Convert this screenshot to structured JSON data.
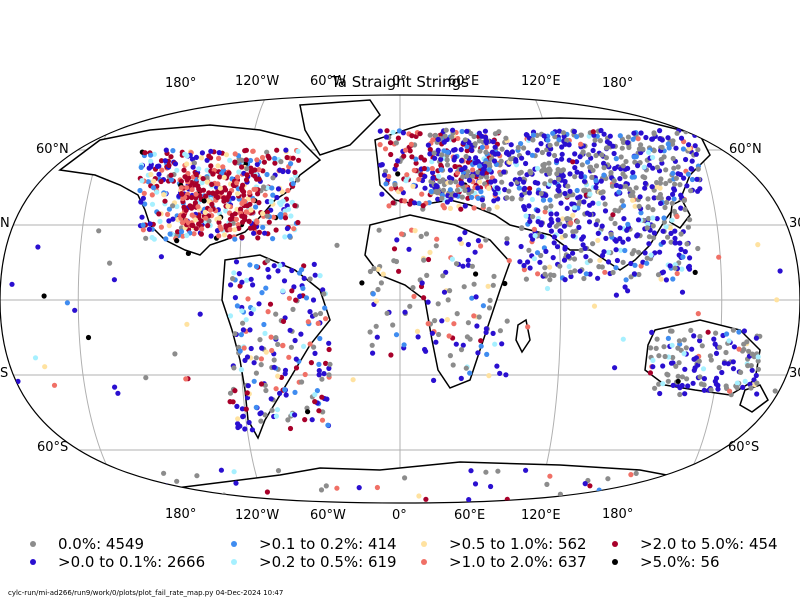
{
  "title": "Ta Straight Strings",
  "top_lon_labels": [
    "180°",
    "120°W",
    "60°W",
    "0°",
    "60°E",
    "120°E",
    "180°"
  ],
  "bottom_lon_labels": [
    "180°",
    "120°W",
    "60°W",
    "0°",
    "60°E",
    "120°E",
    "180°"
  ],
  "lat_labels_left": [
    "60°N",
    "N",
    "S",
    "60°S"
  ],
  "lat_labels_right": [
    "60°N",
    "30",
    "30",
    "60°S"
  ],
  "legend": [
    {
      "label": "0.0%: 4549",
      "color": "#8c8c8c"
    },
    {
      "label": ">0.0 to 0.1%: 2666",
      "color": "#2a0fd0"
    },
    {
      "label": ">0.1 to 0.2%: 414",
      "color": "#3f8cf0"
    },
    {
      "label": ">0.2 to 0.5%: 619",
      "color": "#a6f0ff"
    },
    {
      "label": ">0.5 to 1.0%: 562",
      "color": "#ffe2a0"
    },
    {
      "label": ">1.0 to 2.0%: 637",
      "color": "#f07066"
    },
    {
      "label": ">2.0 to 5.0%: 454",
      "color": "#a8002a"
    },
    {
      "label": ">5.0%: 56",
      "color": "#000000"
    }
  ],
  "footer": "cylc-run/mi-ad266/run9/work/0/plots/plot_fail_rate_map.py   04-Dec-2024 10:47"
}
